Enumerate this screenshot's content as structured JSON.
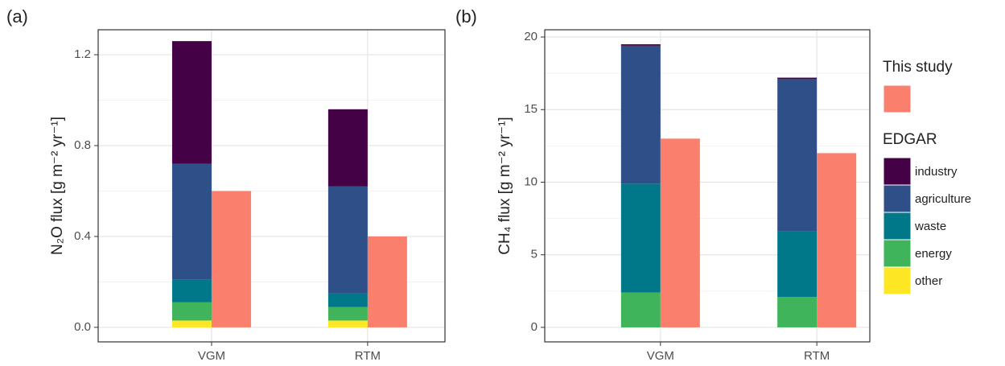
{
  "chart_data": [
    {
      "type": "bar",
      "panel_label": "(a)",
      "ylabel": "N₂O flux [g m⁻² yr⁻¹]",
      "categories": [
        "VGM",
        "RTM"
      ],
      "ylim": [
        -0.064,
        1.31
      ],
      "yticks": [
        {
          "value": 0,
          "label": "0.0"
        },
        0.4,
        0.8,
        1.2
      ],
      "grid": true,
      "series": [
        {
          "name": "other",
          "stack": "EDGAR",
          "color": "#fde725",
          "values": [
            0.03,
            0.03
          ]
        },
        {
          "name": "energy",
          "stack": "EDGAR",
          "color": "#3fb45a",
          "values": [
            0.08,
            0.06
          ]
        },
        {
          "name": "waste",
          "stack": "EDGAR",
          "color": "#00788a",
          "values": [
            0.1,
            0.06
          ]
        },
        {
          "name": "agriculture",
          "stack": "EDGAR",
          "color": "#2f4f88",
          "values": [
            0.51,
            0.47
          ]
        },
        {
          "name": "industry",
          "stack": "EDGAR",
          "color": "#440145",
          "values": [
            0.54,
            0.34
          ]
        },
        {
          "stack": "This study",
          "color": "#fa7f6c",
          "values": [
            0.6,
            0.4
          ]
        }
      ]
    },
    {
      "type": "bar",
      "panel_label": "(b)",
      "ylabel": "CH₄ flux [g m⁻² yr⁻¹]",
      "categories": [
        "VGM",
        "RTM"
      ],
      "ylim": [
        -1.0,
        20.5
      ],
      "yticks": [
        0,
        5,
        10,
        15,
        20
      ],
      "grid": true,
      "series": [
        {
          "name": "other",
          "stack": "EDGAR",
          "color": "#fde725",
          "values": [
            0,
            0
          ]
        },
        {
          "name": "energy",
          "stack": "EDGAR",
          "color": "#3fb45a",
          "values": [
            2.4,
            2.1
          ]
        },
        {
          "name": "waste",
          "stack": "EDGAR",
          "color": "#00788a",
          "values": [
            7.5,
            4.5
          ]
        },
        {
          "name": "agriculture",
          "stack": "EDGAR",
          "color": "#2f4f88",
          "values": [
            9.5,
            10.5
          ]
        },
        {
          "name": "industry",
          "stack": "EDGAR",
          "color": "#440145",
          "values": [
            0.1,
            0.1
          ]
        },
        {
          "stack": "This study",
          "color": "#fa7f6c",
          "values": [
            13,
            12
          ]
        }
      ]
    }
  ]
}
